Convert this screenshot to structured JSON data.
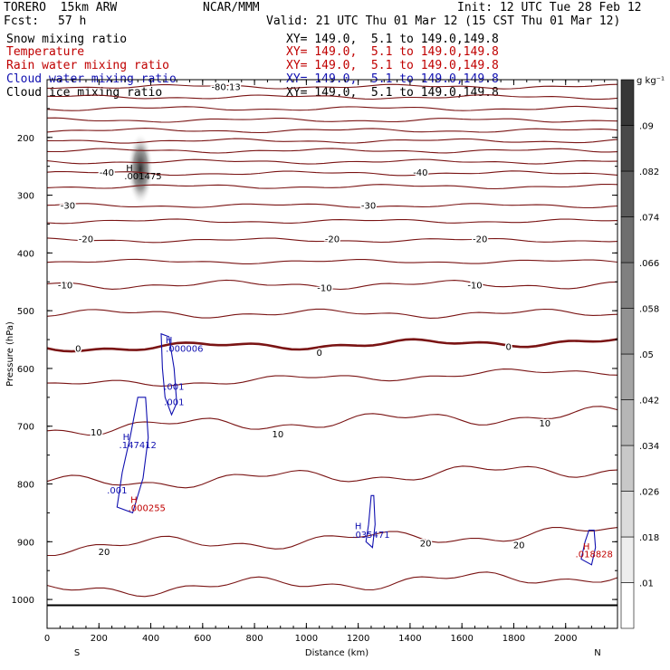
{
  "header": {
    "model": "TORERO  15km ARW",
    "center": "NCAR/MMM",
    "init": "Init: 12 UTC Tue 28 Feb 12",
    "fcst_label": "Fcst:",
    "fcst_value": "57 h",
    "valid": "Valid: 21 UTC Thu 01 Mar 12 (15 CST Thu 01 Mar 12)"
  },
  "fields": [
    {
      "name": "Snow mixing ratio",
      "xy": "XY= 149.0,  5.1 to 149.0,149.8",
      "color": "#000000"
    },
    {
      "name": "Temperature",
      "xy": "XY= 149.0,  5.1 to 149.0,149.8",
      "color": "#c00000"
    },
    {
      "name": "Rain water mixing ratio",
      "xy": "XY= 149.0,  5.1 to 149.0,149.8",
      "color": "#c00000"
    },
    {
      "name": "Cloud water mixing ratio",
      "xy": "XY= 149.0,  5.1 to 149.0,149.8",
      "color": "#1010b0"
    },
    {
      "name": "Cloud ice mixing ratio",
      "xy": "XY= 149.0,  5.1 to 149.0,149.8",
      "color": "#000000"
    }
  ],
  "chart_data": {
    "type": "contour cross-section",
    "xlabel": "Distance (km)",
    "ylabel": "Pressure (hPa)",
    "xlim": [
      0,
      2200
    ],
    "ylim": [
      1050,
      100
    ],
    "x_ticks": [
      0,
      200,
      400,
      600,
      800,
      1000,
      1200,
      1400,
      1600,
      1800,
      2000
    ],
    "y_ticks": [
      200,
      300,
      400,
      500,
      600,
      700,
      800,
      900,
      1000
    ],
    "left_label": "S",
    "right_label": "N",
    "colorbar": {
      "unit": "g kg⁻¹",
      "ticks": [
        ".01",
        ".018",
        ".026",
        ".034",
        ".042",
        ".05",
        ".058",
        ".066",
        ".074",
        ".082",
        ".09"
      ]
    },
    "temperature_contours": {
      "color": "#7a1414",
      "levels": [
        -80,
        -75,
        -70,
        -65,
        -60,
        -55,
        -50,
        -45,
        -40,
        -35,
        -30,
        -25,
        -20,
        -15,
        -10,
        -5,
        0,
        5,
        10,
        15,
        20,
        25
      ],
      "labels": [
        {
          "text": "-80.13",
          "x": 690,
          "p": 112
        },
        {
          "text": "-40",
          "x": 230,
          "p": 260
        },
        {
          "text": "-40",
          "x": 1440,
          "p": 260
        },
        {
          "text": "-30",
          "x": 80,
          "p": 317
        },
        {
          "text": "-30",
          "x": 1240,
          "p": 317
        },
        {
          "text": "-20",
          "x": 150,
          "p": 375
        },
        {
          "text": "-20",
          "x": 1100,
          "p": 375
        },
        {
          "text": "-20",
          "x": 1670,
          "p": 375
        },
        {
          "text": "-10",
          "x": 70,
          "p": 455
        },
        {
          "text": "-10",
          "x": 1070,
          "p": 460
        },
        {
          "text": "-10",
          "x": 1650,
          "p": 455
        },
        {
          "text": "0",
          "x": 120,
          "p": 565
        },
        {
          "text": "0",
          "x": 1050,
          "p": 572
        },
        {
          "text": "0",
          "x": 1780,
          "p": 562
        },
        {
          "text": "10",
          "x": 190,
          "p": 710
        },
        {
          "text": "10",
          "x": 890,
          "p": 713
        },
        {
          "text": "10",
          "x": 1920,
          "p": 694
        },
        {
          "text": "20",
          "x": 220,
          "p": 917
        },
        {
          "text": "20",
          "x": 1460,
          "p": 902
        },
        {
          "text": "20",
          "x": 1820,
          "p": 905
        }
      ]
    },
    "cloud_water_contours": {
      "color": "#1010b0",
      "labels": [
        {
          "text": "H",
          "x": 470,
          "p": 550
        },
        {
          "text": ".000006",
          "x": 530,
          "p": 565
        },
        {
          "text": ".001",
          "x": 490,
          "p": 631
        },
        {
          "text": ".001",
          "x": 490,
          "p": 657
        },
        {
          "text": "H",
          "x": 305,
          "p": 718
        },
        {
          "text": ".147412",
          "x": 350,
          "p": 732
        },
        {
          "text": ".001",
          "x": 270,
          "p": 810
        },
        {
          "text": "H",
          "x": 1200,
          "p": 872
        },
        {
          "text": ".035471",
          "x": 1250,
          "p": 887
        }
      ]
    },
    "rain_water_labels": {
      "color": "#c00000",
      "labels": [
        {
          "text": "H",
          "x": 335,
          "p": 827
        },
        {
          "text": ".000255",
          "x": 385,
          "p": 841
        },
        {
          "text": "H",
          "x": 2080,
          "p": 907
        },
        {
          "text": ".018828",
          "x": 2110,
          "p": 921
        }
      ]
    },
    "snow_labels": {
      "color": "#000000",
      "labels": [
        {
          "text": "H",
          "x": 318,
          "p": 252
        },
        {
          "text": ".001475",
          "x": 370,
          "p": 266
        }
      ]
    }
  }
}
